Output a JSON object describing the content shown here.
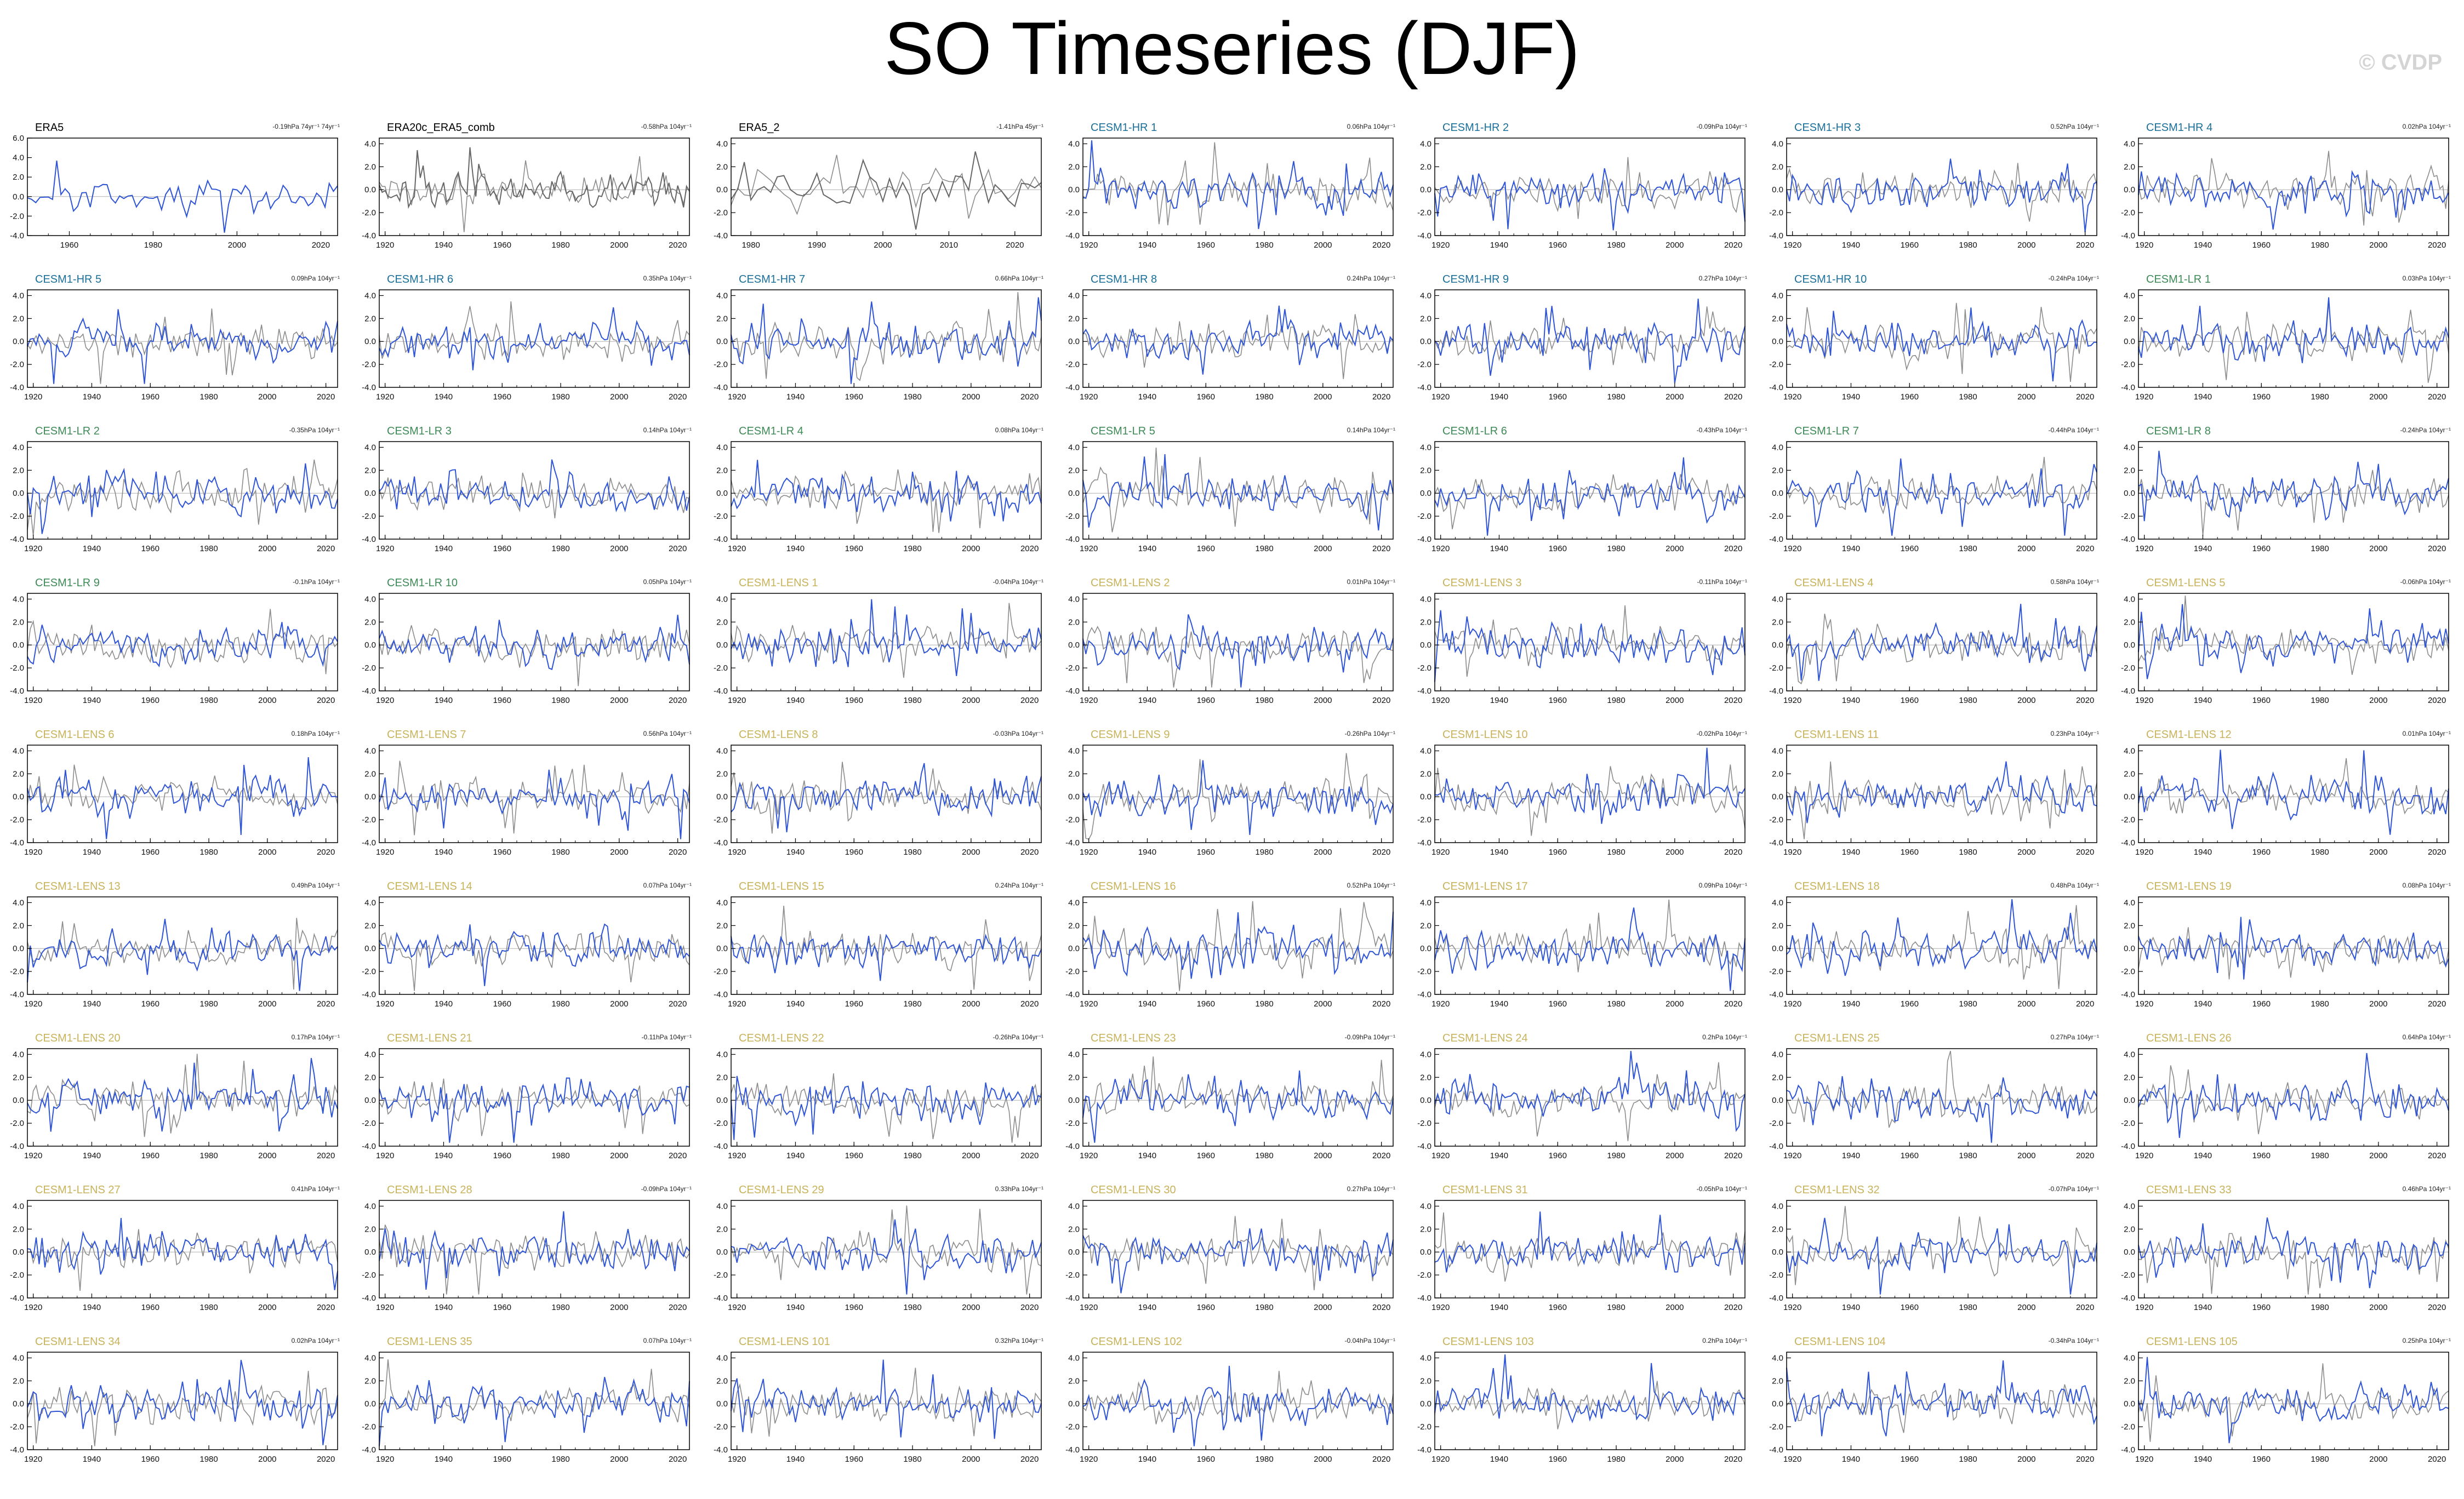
{
  "title": "SO Timeseries (DJF)",
  "watermark": "© CVDP",
  "colors": {
    "obs": "#000000",
    "hr": "#1a6f9a",
    "lr": "#3d8a56",
    "lens": "#c8b25a",
    "blue_line": "#2f55d4",
    "gray_line": "#8c8c8c"
  },
  "chart_data": {
    "type": "line",
    "panels": [
      {
        "name": "ERA5",
        "group": "obs",
        "trend": "-0.19hPa 74yr⁻¹ 74yr⁻¹",
        "xlim": [
          1950,
          2024
        ],
        "xticks": [
          1960,
          1980,
          2000,
          2020
        ],
        "ylim": [
          -4,
          6
        ],
        "yticks": [
          "6.0",
          "4.0",
          "2.0",
          "0.0",
          "-2.0",
          "-4.0"
        ],
        "gray": false
      },
      {
        "name": "ERA20c_ERA5_comb",
        "group": "obs",
        "trend": "-0.58hPa 104yr⁻¹",
        "xlim": [
          1918,
          2024
        ],
        "xticks": [
          1920,
          1940,
          1960,
          1980,
          2000,
          2020
        ],
        "ylim": [
          -4,
          4.5
        ],
        "yticks": [
          "4.0",
          "2.0",
          "0.0",
          "-2.0",
          "-4.0"
        ],
        "gray": true
      },
      {
        "name": "ERA5_2",
        "group": "obs",
        "trend": "-1.41hPa 45yr⁻¹",
        "xlim": [
          1977,
          2024
        ],
        "xticks": [
          1980,
          1990,
          2000,
          2010,
          2020
        ],
        "ylim": [
          -4,
          4.5
        ],
        "yticks": [
          "4.0",
          "2.0",
          "0.0",
          "-2.0",
          "-4.0"
        ],
        "gray": true
      },
      {
        "name": "CESM1-HR 1",
        "group": "hr",
        "trend": "0.06hPa 104yr⁻¹"
      },
      {
        "name": "CESM1-HR 2",
        "group": "hr",
        "trend": "-0.09hPa 104yr⁻¹"
      },
      {
        "name": "CESM1-HR 3",
        "group": "hr",
        "trend": "0.52hPa 104yr⁻¹"
      },
      {
        "name": "CESM1-HR 4",
        "group": "hr",
        "trend": "0.02hPa 104yr⁻¹"
      },
      {
        "name": "CESM1-HR 5",
        "group": "hr",
        "trend": "0.09hPa 104yr⁻¹"
      },
      {
        "name": "CESM1-HR 6",
        "group": "hr",
        "trend": "0.35hPa 104yr⁻¹"
      },
      {
        "name": "CESM1-HR 7",
        "group": "hr",
        "trend": "0.66hPa 104yr⁻¹"
      },
      {
        "name": "CESM1-HR 8",
        "group": "hr",
        "trend": "0.24hPa 104yr⁻¹"
      },
      {
        "name": "CESM1-HR 9",
        "group": "hr",
        "trend": "0.27hPa 104yr⁻¹"
      },
      {
        "name": "CESM1-HR 10",
        "group": "hr",
        "trend": "-0.24hPa 104yr⁻¹"
      },
      {
        "name": "CESM1-LR 1",
        "group": "lr",
        "trend": "0.03hPa 104yr⁻¹"
      },
      {
        "name": "CESM1-LR 2",
        "group": "lr",
        "trend": "-0.35hPa 104yr⁻¹"
      },
      {
        "name": "CESM1-LR 3",
        "group": "lr",
        "trend": "0.14hPa 104yr⁻¹"
      },
      {
        "name": "CESM1-LR 4",
        "group": "lr",
        "trend": "0.08hPa 104yr⁻¹"
      },
      {
        "name": "CESM1-LR 5",
        "group": "lr",
        "trend": "0.14hPa 104yr⁻¹"
      },
      {
        "name": "CESM1-LR 6",
        "group": "lr",
        "trend": "-0.43hPa 104yr⁻¹"
      },
      {
        "name": "CESM1-LR 7",
        "group": "lr",
        "trend": "-0.44hPa 104yr⁻¹"
      },
      {
        "name": "CESM1-LR 8",
        "group": "lr",
        "trend": "-0.24hPa 104yr⁻¹"
      },
      {
        "name": "CESM1-LR 9",
        "group": "lr",
        "trend": "-0.1hPa 104yr⁻¹"
      },
      {
        "name": "CESM1-LR 10",
        "group": "lr",
        "trend": "0.05hPa 104yr⁻¹"
      },
      {
        "name": "CESM1-LENS 1",
        "group": "lens",
        "trend": "-0.04hPa 104yr⁻¹"
      },
      {
        "name": "CESM1-LENS 2",
        "group": "lens",
        "trend": "0.01hPa 104yr⁻¹"
      },
      {
        "name": "CESM1-LENS 3",
        "group": "lens",
        "trend": "-0.11hPa 104yr⁻¹"
      },
      {
        "name": "CESM1-LENS 4",
        "group": "lens",
        "trend": "0.58hPa 104yr⁻¹"
      },
      {
        "name": "CESM1-LENS 5",
        "group": "lens",
        "trend": "-0.06hPa 104yr⁻¹"
      },
      {
        "name": "CESM1-LENS 6",
        "group": "lens",
        "trend": "0.18hPa 104yr⁻¹"
      },
      {
        "name": "CESM1-LENS 7",
        "group": "lens",
        "trend": "0.56hPa 104yr⁻¹"
      },
      {
        "name": "CESM1-LENS 8",
        "group": "lens",
        "trend": "-0.03hPa 104yr⁻¹"
      },
      {
        "name": "CESM1-LENS 9",
        "group": "lens",
        "trend": "-0.26hPa 104yr⁻¹"
      },
      {
        "name": "CESM1-LENS 10",
        "group": "lens",
        "trend": "-0.02hPa 104yr⁻¹"
      },
      {
        "name": "CESM1-LENS 11",
        "group": "lens",
        "trend": "0.23hPa 104yr⁻¹"
      },
      {
        "name": "CESM1-LENS 12",
        "group": "lens",
        "trend": "0.01hPa 104yr⁻¹"
      },
      {
        "name": "CESM1-LENS 13",
        "group": "lens",
        "trend": "0.49hPa 104yr⁻¹"
      },
      {
        "name": "CESM1-LENS 14",
        "group": "lens",
        "trend": "0.07hPa 104yr⁻¹"
      },
      {
        "name": "CESM1-LENS 15",
        "group": "lens",
        "trend": "0.24hPa 104yr⁻¹"
      },
      {
        "name": "CESM1-LENS 16",
        "group": "lens",
        "trend": "0.52hPa 104yr⁻¹"
      },
      {
        "name": "CESM1-LENS 17",
        "group": "lens",
        "trend": "0.09hPa 104yr⁻¹"
      },
      {
        "name": "CESM1-LENS 18",
        "group": "lens",
        "trend": "0.48hPa 104yr⁻¹"
      },
      {
        "name": "CESM1-LENS 19",
        "group": "lens",
        "trend": "0.08hPa 104yr⁻¹"
      },
      {
        "name": "CESM1-LENS 20",
        "group": "lens",
        "trend": "0.17hPa 104yr⁻¹"
      },
      {
        "name": "CESM1-LENS 21",
        "group": "lens",
        "trend": "-0.11hPa 104yr⁻¹"
      },
      {
        "name": "CESM1-LENS 22",
        "group": "lens",
        "trend": "-0.26hPa 104yr⁻¹"
      },
      {
        "name": "CESM1-LENS 23",
        "group": "lens",
        "trend": "-0.09hPa 104yr⁻¹"
      },
      {
        "name": "CESM1-LENS 24",
        "group": "lens",
        "trend": "0.2hPa 104yr⁻¹"
      },
      {
        "name": "CESM1-LENS 25",
        "group": "lens",
        "trend": "0.27hPa 104yr⁻¹"
      },
      {
        "name": "CESM1-LENS 26",
        "group": "lens",
        "trend": "0.64hPa 104yr⁻¹"
      },
      {
        "name": "CESM1-LENS 27",
        "group": "lens",
        "trend": "0.41hPa 104yr⁻¹"
      },
      {
        "name": "CESM1-LENS 28",
        "group": "lens",
        "trend": "-0.09hPa 104yr⁻¹"
      },
      {
        "name": "CESM1-LENS 29",
        "group": "lens",
        "trend": "0.33hPa 104yr⁻¹"
      },
      {
        "name": "CESM1-LENS 30",
        "group": "lens",
        "trend": "0.27hPa 104yr⁻¹"
      },
      {
        "name": "CESM1-LENS 31",
        "group": "lens",
        "trend": "-0.05hPa 104yr⁻¹"
      },
      {
        "name": "CESM1-LENS 32",
        "group": "lens",
        "trend": "-0.07hPa 104yr⁻¹"
      },
      {
        "name": "CESM1-LENS 33",
        "group": "lens",
        "trend": "0.46hPa 104yr⁻¹"
      },
      {
        "name": "CESM1-LENS 34",
        "group": "lens",
        "trend": "0.02hPa 104yr⁻¹"
      },
      {
        "name": "CESM1-LENS 35",
        "group": "lens",
        "trend": "0.07hPa 104yr⁻¹"
      },
      {
        "name": "CESM1-LENS 101",
        "group": "lens",
        "trend": "0.32hPa 104yr⁻¹"
      },
      {
        "name": "CESM1-LENS 102",
        "group": "lens",
        "trend": "-0.04hPa 104yr⁻¹"
      },
      {
        "name": "CESM1-LENS 103",
        "group": "lens",
        "trend": "0.2hPa 104yr⁻¹"
      },
      {
        "name": "CESM1-LENS 104",
        "group": "lens",
        "trend": "-0.34hPa 104yr⁻¹"
      },
      {
        "name": "CESM1-LENS 105",
        "group": "lens",
        "trend": "0.25hPa 104yr⁻¹"
      }
    ],
    "model_defaults": {
      "xlim": [
        1918,
        2024
      ],
      "xticks": [
        1920,
        1940,
        1960,
        1980,
        2000,
        2020
      ],
      "ylim": [
        -4,
        4.5
      ],
      "yticks": [
        "4.0",
        "2.0",
        "0.0",
        "-2.0",
        "-4.0"
      ]
    },
    "ylim_row0": [
      -4,
      4.5
    ]
  }
}
